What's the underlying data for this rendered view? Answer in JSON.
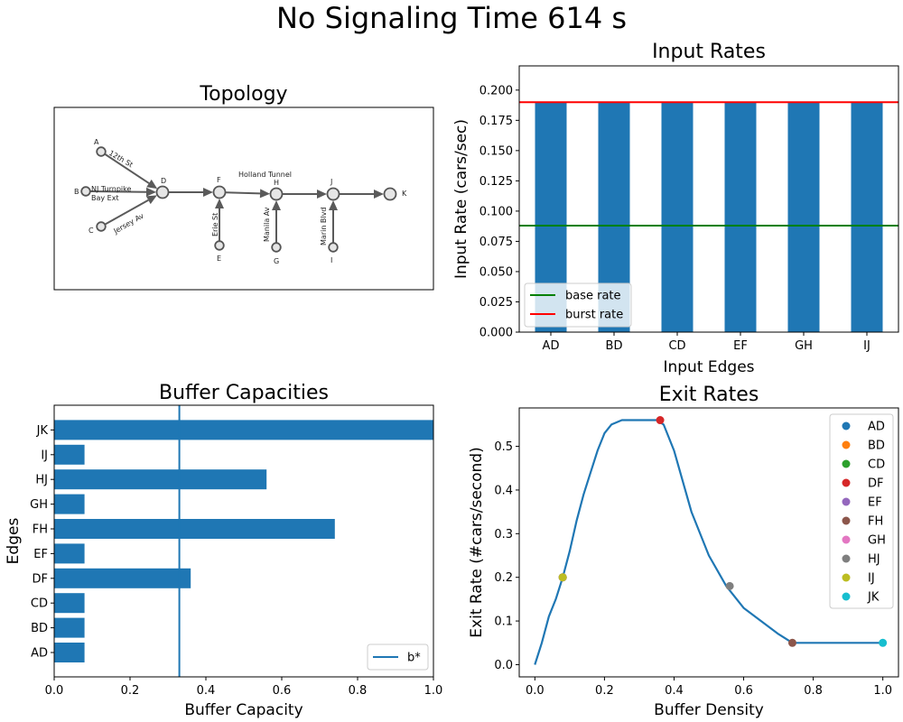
{
  "figure": {
    "suptitle": "No Signaling Time 614 s"
  },
  "topology": {
    "title": "Topology",
    "nodes": [
      "A",
      "B",
      "C",
      "D",
      "E",
      "F",
      "G",
      "H",
      "I",
      "J",
      "K"
    ],
    "street_labels": {
      "twelfth": "12th St",
      "nj1": "NJ Turnpike",
      "nj2": "Bay Ext",
      "jersey": "Jersey Av",
      "holland": "Holland Tunnel",
      "erie": "Erie St",
      "manila": "Manila Av",
      "marin": "Marin Blvd"
    }
  },
  "chart_data": [
    {
      "id": "input_rates",
      "type": "bar",
      "title": "Input Rates",
      "xlabel": "Input Edges",
      "ylabel": "Input Rate (cars/sec)",
      "categories": [
        "AD",
        "BD",
        "CD",
        "EF",
        "GH",
        "IJ"
      ],
      "values": [
        0.19,
        0.19,
        0.19,
        0.19,
        0.19,
        0.19
      ],
      "ylim": [
        0,
        0.22
      ],
      "yticks": [
        "0.000",
        "0.025",
        "0.050",
        "0.075",
        "0.100",
        "0.125",
        "0.150",
        "0.175",
        "0.200"
      ],
      "bar_color": "#1f77b4",
      "hlines": [
        {
          "name": "base rate",
          "value": 0.088,
          "color": "#008000"
        },
        {
          "name": "burst rate",
          "value": 0.19,
          "color": "#ff0000"
        }
      ],
      "legend": "lower-left"
    },
    {
      "id": "buffer_capacities",
      "type": "bar",
      "orientation": "horizontal",
      "title": "Buffer Capacities",
      "xlabel": "Buffer Capacity",
      "ylabel": "Edges",
      "categories": [
        "AD",
        "BD",
        "CD",
        "DF",
        "EF",
        "FH",
        "GH",
        "HJ",
        "IJ",
        "JK"
      ],
      "values": [
        0.08,
        0.08,
        0.08,
        0.36,
        0.08,
        0.74,
        0.08,
        0.56,
        0.08,
        1.0
      ],
      "xlim": [
        0,
        1
      ],
      "xticks": [
        "0.0",
        "0.2",
        "0.4",
        "0.6",
        "0.8",
        "1.0"
      ],
      "bar_color": "#1f77b4",
      "vline": {
        "name": "b*",
        "value": 0.33,
        "color": "#1f77b4"
      },
      "legend": "lower-right"
    },
    {
      "id": "exit_rates",
      "type": "line",
      "title": "Exit Rates",
      "xlabel": "Buffer Density",
      "ylabel": "Exit Rate (#cars/second)",
      "xlim": [
        -0.045,
        1.045
      ],
      "ylim": [
        -0.028,
        0.588
      ],
      "xticks": [
        "0.0",
        "0.2",
        "0.4",
        "0.6",
        "0.8",
        "1.0"
      ],
      "yticks": [
        "0.0",
        "0.1",
        "0.2",
        "0.3",
        "0.4",
        "0.5"
      ],
      "line_color": "#1f77b4",
      "curve": {
        "x": [
          0,
          0.02,
          0.04,
          0.06,
          0.08,
          0.1,
          0.12,
          0.14,
          0.16,
          0.18,
          0.2,
          0.22,
          0.25,
          0.3,
          0.35,
          0.37,
          0.4,
          0.45,
          0.5,
          0.55,
          0.6,
          0.65,
          0.7,
          0.74,
          0.8,
          0.9,
          1.0
        ],
        "y": [
          0,
          0.05,
          0.11,
          0.15,
          0.2,
          0.26,
          0.33,
          0.39,
          0.44,
          0.49,
          0.53,
          0.55,
          0.56,
          0.56,
          0.56,
          0.55,
          0.49,
          0.35,
          0.25,
          0.18,
          0.13,
          0.1,
          0.07,
          0.05,
          0.05,
          0.05,
          0.05
        ]
      },
      "points": [
        {
          "name": "AD",
          "x": 0.08,
          "y": 0.2,
          "color": "#1f77b4"
        },
        {
          "name": "BD",
          "x": 0.08,
          "y": 0.2,
          "color": "#ff7f0e"
        },
        {
          "name": "CD",
          "x": 0.08,
          "y": 0.2,
          "color": "#2ca02c"
        },
        {
          "name": "DF",
          "x": 0.36,
          "y": 0.56,
          "color": "#d62728"
        },
        {
          "name": "EF",
          "x": 0.08,
          "y": 0.2,
          "color": "#9467bd"
        },
        {
          "name": "FH",
          "x": 0.74,
          "y": 0.05,
          "color": "#8c564b"
        },
        {
          "name": "GH",
          "x": 0.08,
          "y": 0.2,
          "color": "#e377c2"
        },
        {
          "name": "HJ",
          "x": 0.56,
          "y": 0.18,
          "color": "#7f7f7f"
        },
        {
          "name": "IJ",
          "x": 0.08,
          "y": 0.2,
          "color": "#bcbd22"
        },
        {
          "name": "JK",
          "x": 1.0,
          "y": 0.05,
          "color": "#17becf"
        }
      ],
      "legend": "upper-right"
    }
  ]
}
